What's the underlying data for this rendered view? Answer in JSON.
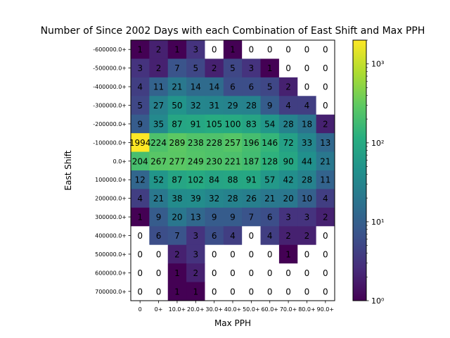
{
  "chart_data": {
    "type": "heatmap",
    "title": "Number of Since 2002 Days with each Combination of East Shift and Max PPH",
    "xlabel": "Max PPH",
    "ylabel": "East Shift",
    "x_categories": [
      "0",
      "0+",
      "10.0+",
      "20.0+",
      "30.0+",
      "40.0+",
      "50.0+",
      "60.0+",
      "70.0+",
      "80.0+",
      "90.0+"
    ],
    "y_categories": [
      "-600000.0+",
      "-500000.0+",
      "-400000.0+",
      "-300000.0+",
      "-200000.0+",
      "-100000.0+",
      "0.0+",
      "100000.0+",
      "200000.0+",
      "300000.0+",
      "400000.0+",
      "500000.0+",
      "600000.0+",
      "700000.0+"
    ],
    "values": [
      [
        1,
        2,
        1,
        3,
        0,
        1,
        0,
        0,
        0,
        0,
        0
      ],
      [
        3,
        2,
        7,
        5,
        2,
        5,
        3,
        1,
        0,
        0,
        0
      ],
      [
        4,
        11,
        21,
        14,
        14,
        6,
        6,
        5,
        2,
        0,
        0
      ],
      [
        5,
        27,
        50,
        32,
        31,
        29,
        28,
        9,
        4,
        4,
        0
      ],
      [
        9,
        35,
        87,
        91,
        105,
        100,
        83,
        54,
        28,
        18,
        2
      ],
      [
        1994,
        224,
        289,
        238,
        228,
        257,
        196,
        146,
        72,
        33,
        13
      ],
      [
        204,
        267,
        277,
        249,
        230,
        221,
        187,
        128,
        90,
        44,
        21
      ],
      [
        12,
        52,
        87,
        102,
        84,
        88,
        91,
        57,
        42,
        28,
        11
      ],
      [
        4,
        21,
        38,
        39,
        32,
        28,
        26,
        21,
        20,
        10,
        4
      ],
      [
        1,
        9,
        20,
        13,
        9,
        9,
        7,
        6,
        3,
        3,
        2
      ],
      [
        0,
        6,
        7,
        3,
        6,
        4,
        0,
        4,
        2,
        2,
        0
      ],
      [
        0,
        0,
        2,
        3,
        0,
        0,
        0,
        0,
        1,
        0,
        0
      ],
      [
        0,
        0,
        1,
        2,
        0,
        0,
        0,
        0,
        0,
        0,
        0
      ],
      [
        0,
        0,
        1,
        1,
        0,
        0,
        0,
        0,
        0,
        0,
        0
      ]
    ],
    "zero_color": "#ffffff",
    "colormap": "viridis",
    "colorbar": {
      "scale": "log",
      "min": 1,
      "max": 2000,
      "ticks": [
        1,
        10,
        100,
        1000
      ],
      "tick_labels": [
        "10⁰",
        "10¹",
        "10²",
        "10³"
      ]
    }
  }
}
